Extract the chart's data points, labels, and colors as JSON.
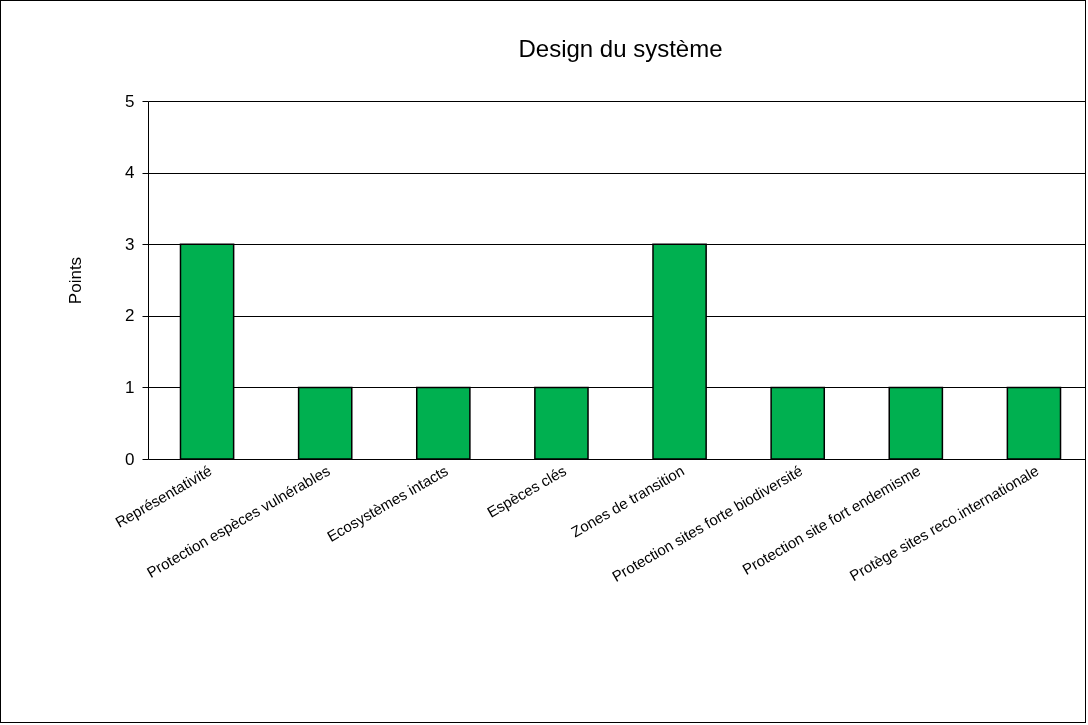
{
  "chart_data": {
    "type": "bar",
    "title": "Design du système",
    "ylabel": "Points",
    "categories": [
      "Représentativité",
      "Protection espèces vulnérables",
      "Ecosystèmes intacts",
      "Espèces clés",
      "Zones de transition",
      "Protection sites forte biodiversité",
      "Protection site fort endemisme",
      "Protège sites reco.internationale"
    ],
    "values": [
      3,
      1,
      1,
      1,
      3,
      1,
      1,
      1
    ],
    "color": "#00b050",
    "ylim": [
      0,
      5
    ],
    "yticks": [
      0,
      1,
      2,
      3,
      4,
      5
    ],
    "grid": "y"
  }
}
